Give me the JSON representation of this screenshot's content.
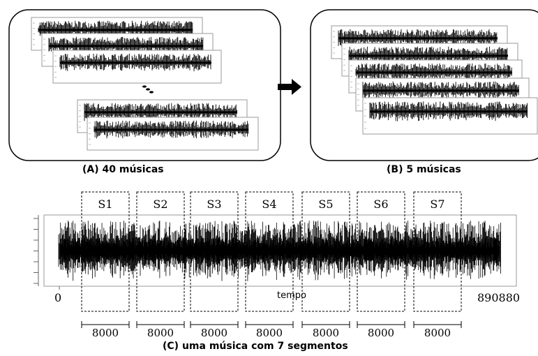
{
  "panel_a": {
    "caption": "(A) 40 músicas"
  },
  "panel_b": {
    "caption": "(B) 5 músicas"
  },
  "panel_c": {
    "caption": "(C) uma música com 7 segmentos",
    "x_start": "0",
    "x_end": "890880",
    "axis_label": "tempo",
    "segments": [
      {
        "label": "S1",
        "length": "8000"
      },
      {
        "label": "S2",
        "length": "8000"
      },
      {
        "label": "S3",
        "length": "8000"
      },
      {
        "label": "S4",
        "length": "8000"
      },
      {
        "label": "S5",
        "length": "8000"
      },
      {
        "label": "S6",
        "length": "8000"
      },
      {
        "label": "S7",
        "length": "8000"
      }
    ]
  },
  "colors": {
    "waveform": "#000000",
    "frame": "#9a9a9a",
    "box": "#000000"
  },
  "icons": {
    "flow": "arrow-right-icon",
    "ellipsis": "ellipsis-dots-icon"
  }
}
